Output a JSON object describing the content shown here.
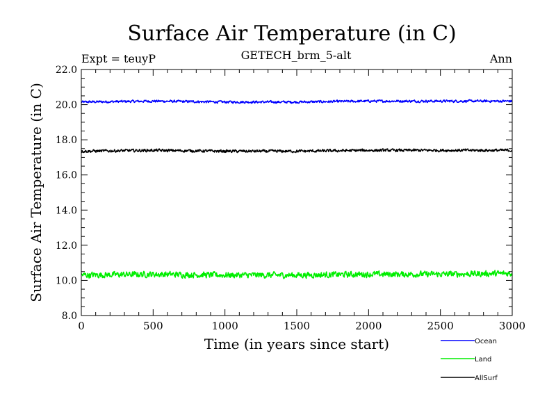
{
  "chart_data": {
    "type": "line",
    "title": "Surface Air Temperature (in C)",
    "subtitle_left": "Expt = teuyP",
    "subtitle_center": "GETECH_brm_5-alt",
    "subtitle_right": "Ann",
    "xlabel": "Time (in years since start)",
    "ylabel": "Surface Air Temperature (in C)",
    "xlim": [
      0,
      3000
    ],
    "ylim": [
      8.0,
      22.0
    ],
    "x_ticks": [
      "0",
      "500",
      "1000",
      "1500",
      "2000",
      "2500",
      "3000"
    ],
    "y_ticks": [
      "8.0",
      "10.0",
      "12.0",
      "14.0",
      "16.0",
      "18.0",
      "20.0",
      "22.0"
    ],
    "grid": false,
    "legend_position": "below-right",
    "series": [
      {
        "name": "Ocean",
        "color": "#0000ff",
        "x": [
          0,
          500,
          1000,
          1500,
          2000,
          2500,
          3000
        ],
        "values": [
          20.15,
          20.2,
          20.15,
          20.15,
          20.2,
          20.2,
          20.2
        ],
        "noise": 0.06
      },
      {
        "name": "Land",
        "color": "#00ee00",
        "x": [
          0,
          500,
          1000,
          1500,
          2000,
          2500,
          3000
        ],
        "values": [
          10.3,
          10.35,
          10.3,
          10.3,
          10.35,
          10.35,
          10.4
        ],
        "noise": 0.15
      },
      {
        "name": "AllSurf",
        "color": "#000000",
        "x": [
          0,
          500,
          1000,
          1500,
          2000,
          2500,
          3000
        ],
        "values": [
          17.35,
          17.4,
          17.35,
          17.35,
          17.4,
          17.4,
          17.4
        ],
        "noise": 0.07
      }
    ]
  }
}
